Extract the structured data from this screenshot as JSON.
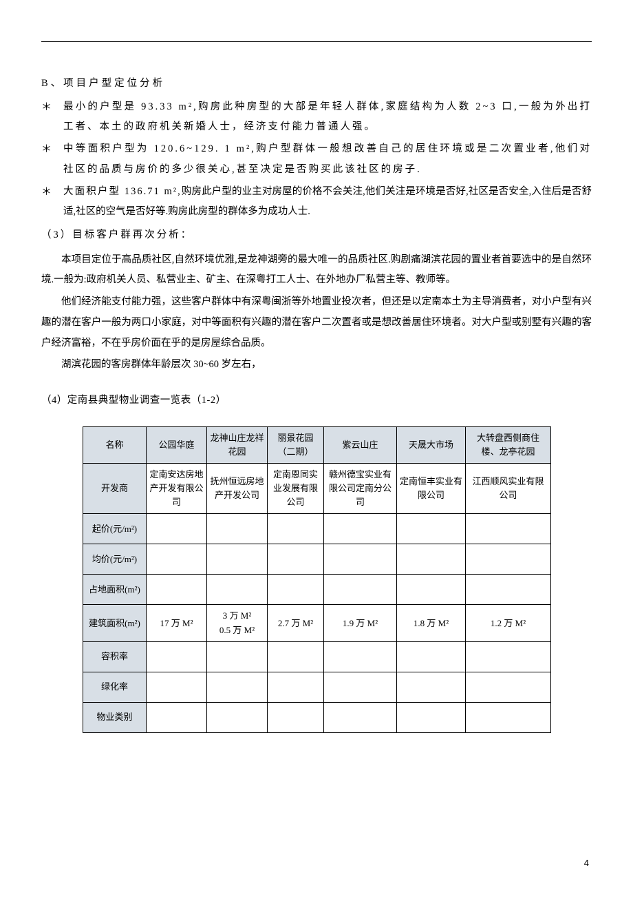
{
  "page_number": "4",
  "sectionB": {
    "heading": "B、项目户型定位分析",
    "bullets": [
      "最小的户型是 93.33 m²,购房此种房型的大部是年轻人群体,家庭结构为人数 2~3 口,一般为外出打工者、本土的政府机关新婚人士，经济支付能力普通人强。",
      "中等面积户型为 120.6~129. 1 m²,购户型群体一般想改善自己的居住环境或是二次置业者,他们对社区的品质与房价的多少很关心,甚至决定是否购买此该社区的房子.",
      "大面积户型 136.71 m²,购房此户型的业主对房屋的价格不会关注,他们关注是环境是否好,社区是否安全,入住后是否舒适,社区的空气是否好等.购房此房型的群体多为成功人士."
    ]
  },
  "section3": {
    "heading": "（3）目标客户群再次分析：",
    "paras": [
      "本项目定位于高品质社区,自然环境优雅,是龙神湖旁的最大唯一的品质社区.购剧痛湖滨花园的置业者首要选中的是自然环境.一般为:政府机关人员、私营业主、矿主、在深粤打工人士、在外地办厂私营主等、教师等。",
      "他们经济能支付能力强，这些客户群体中有深粤闽浙等外地置业投次者，但还是以定南本土为主导消费者，对小户型有兴趣的潜在客户一般为两口小家庭，对中等面积有兴趣的潜在客户二次置者或是想改善居住环境者。对大户型或别墅有兴趣的客户经济富裕，不在乎房价面在乎的是房屋综合品质。",
      "湖滨花园的客房群体年龄层次 30~60 岁左右，"
    ]
  },
  "section4": {
    "heading": "（4）定南县典型物业调查一览表（1-2）"
  },
  "table": {
    "headers": [
      "名称",
      "公园华庭",
      "龙神山庄龙祥花园",
      "丽景花园（二期）",
      "紫云山庄",
      "天晟大市场",
      "大转盘西侧商住楼、龙亭花园"
    ],
    "row_labels": [
      "开发商",
      "起价(元/m²)",
      "均价(元/m²)",
      "占地面积(m²)",
      "建筑面积(m²)",
      "容积率",
      "绿化率",
      "物业类别"
    ],
    "developer": [
      "定南安达房地产开发有限公司",
      "抚州恒远房地产开发公司",
      "定南恩同实业发展有限公司",
      "赣州德宝实业有限公司定南分公司",
      "定南恒丰实业有限公司",
      "江西顺风实业有限公司"
    ],
    "build_area": [
      "17 万 M²",
      "3 万 M²\n0.5 万 M²",
      "2.7 万 M²",
      "1.9 万 M²",
      "1.8 万 M²",
      "1.2 万 M²"
    ]
  }
}
